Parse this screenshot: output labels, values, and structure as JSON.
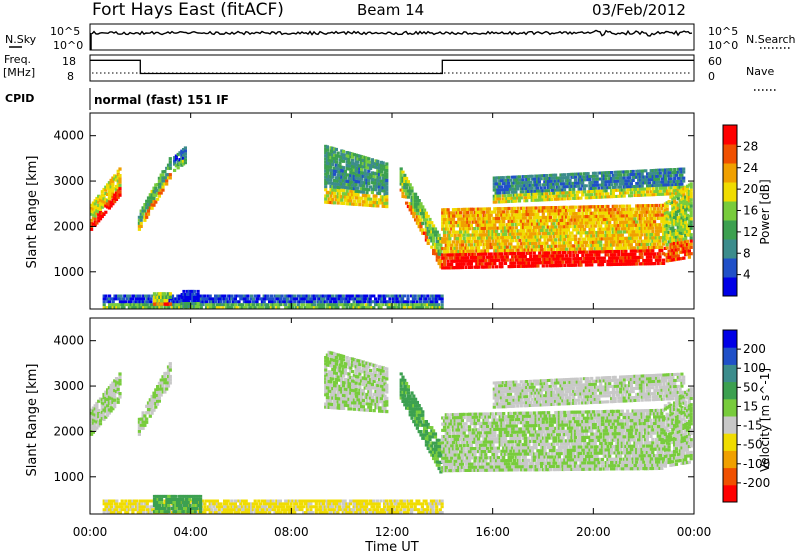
{
  "header": {
    "station": "Fort Hays East (fitACF)",
    "beam": "Beam 14",
    "date": "03/Feb/2012"
  },
  "strips": {
    "nsky_label": "N.Sky",
    "nsearch_label": "N.Search",
    "freq_label_top": "Freq.",
    "freq_label_units": "[MHz]",
    "nave_label": "Nave",
    "cpid_label": "CPID",
    "cpid_text": "normal (fast) 151 IF",
    "noise_ticks_left": [
      "10^5",
      "10^0"
    ],
    "noise_ticks_right": [
      "10^5",
      "10^0"
    ],
    "freq_ticks": [
      "18",
      "8"
    ],
    "nave_ticks": [
      "60",
      "0"
    ],
    "freq_steps": [
      {
        "start": 0.0,
        "end": 2.0,
        "freq": 16.5
      },
      {
        "start": 2.0,
        "end": 14.0,
        "freq": 10.5
      },
      {
        "start": 14.0,
        "end": 24.0,
        "freq": 16.5
      }
    ]
  },
  "chart_data": [
    {
      "type": "heatmap",
      "parameter": "Power",
      "ylabel": "Slant Range [km]",
      "yticks": [
        "1000",
        "2000",
        "3000",
        "4000"
      ],
      "ylim": [
        180,
        4500
      ],
      "xlim": [
        0,
        24
      ],
      "colorbar_label": "Power [dB]",
      "colorbar_ticks": [
        "4",
        "8",
        "12",
        "16",
        "20",
        "24",
        "28"
      ],
      "colorbar_range": [
        0,
        30
      ],
      "colorscale": [
        "#0000e6",
        "#2050c8",
        "#3c8c8c",
        "#3ca050",
        "#78cc3c",
        "#f0dc00",
        "#f0a000",
        "#f05000",
        "#ff0000"
      ],
      "features": [
        {
          "t0": 0.0,
          "t1": 1.2,
          "r0": 1900,
          "r1": 2500,
          "r0_end": 2700,
          "r1_end": 3350,
          "power": 20
        },
        {
          "t0": 1.9,
          "t1": 3.2,
          "r0": 1900,
          "r1": 2300,
          "r0_end": 3100,
          "r1_end": 3600,
          "power": 14
        },
        {
          "t0": 3.3,
          "t1": 3.8,
          "r0": 3200,
          "r1": 3550,
          "r0_end": 3400,
          "r1_end": 3800,
          "power": 8
        },
        {
          "t0": 9.3,
          "t1": 11.8,
          "r0": 2500,
          "r1": 3800,
          "r0_end": 2400,
          "r1_end": 3400,
          "power": 12
        },
        {
          "t0": 12.3,
          "t1": 13.95,
          "r0": 2700,
          "r1": 3300,
          "r0_end": 1000,
          "r1_end": 1700,
          "power": 16
        },
        {
          "t0": 13.95,
          "t1": 22.8,
          "r0": 1050,
          "r1": 2400,
          "r0_end": 1150,
          "r1_end": 2500,
          "power": 22
        },
        {
          "t0": 16.0,
          "t1": 23.6,
          "r0": 2500,
          "r1": 3100,
          "r0_end": 2700,
          "r1_end": 3300,
          "power": 10
        },
        {
          "t0": 22.8,
          "t1": 23.9,
          "r0": 1200,
          "r1": 2600,
          "r0_end": 1300,
          "r1_end": 3000,
          "power": 18
        },
        {
          "t0": 0.5,
          "t1": 14.0,
          "r0": 180,
          "r1": 500,
          "r0_end": 180,
          "r1_end": 500,
          "power": 6
        },
        {
          "t0": 3.6,
          "t1": 4.3,
          "r0": 200,
          "r1": 600,
          "r0_end": 200,
          "r1_end": 600,
          "power": 4
        },
        {
          "t0": 2.5,
          "t1": 3.2,
          "r0": 250,
          "r1": 550,
          "r0_end": 250,
          "r1_end": 550,
          "power": 18
        }
      ]
    },
    {
      "type": "heatmap",
      "parameter": "Velocity",
      "xlabel": "Time UT",
      "ylabel": "Slant Range [km]",
      "yticks": [
        "1000",
        "2000",
        "3000",
        "4000"
      ],
      "ylim": [
        180,
        4500
      ],
      "xlim": [
        0,
        24
      ],
      "xticks": [
        "00:00",
        "04:00",
        "08:00",
        "12:00",
        "16:00",
        "20:00",
        "00:00"
      ],
      "colorbar_label": "Velocity [m s^-1]",
      "colorbar_ticks": [
        "200",
        "100",
        "50",
        "15",
        "-15",
        "-50",
        "-100",
        "-200"
      ],
      "colorbar_range": [
        -250,
        250
      ],
      "colorscale": [
        "#ff0000",
        "#f05000",
        "#f0a000",
        "#f0dc00",
        "#c8c8c8",
        "#78cc3c",
        "#3ca050",
        "#3c8c8c",
        "#2050c8",
        "#0000e6"
      ],
      "features": [
        {
          "t0": 0.0,
          "t1": 1.2,
          "r0": 1900,
          "r1": 2500,
          "r0_end": 2700,
          "r1_end": 3350,
          "velocity": 0
        },
        {
          "t0": 1.9,
          "t1": 3.2,
          "r0": 1900,
          "r1": 2300,
          "r0_end": 3100,
          "r1_end": 3600,
          "velocity": 0
        },
        {
          "t0": 9.3,
          "t1": 11.8,
          "r0": 2500,
          "r1": 3800,
          "r0_end": 2400,
          "r1_end": 3400,
          "velocity": 0
        },
        {
          "t0": 12.3,
          "t1": 13.95,
          "r0": 2700,
          "r1": 3300,
          "r0_end": 1000,
          "r1_end": 1700,
          "velocity": 60
        },
        {
          "t0": 13.95,
          "t1": 22.8,
          "r0": 1100,
          "r1": 2400,
          "r0_end": 1150,
          "r1_end": 2500,
          "velocity": 0
        },
        {
          "t0": 16.0,
          "t1": 23.6,
          "r0": 2500,
          "r1": 3100,
          "r0_end": 2700,
          "r1_end": 3300,
          "velocity": -10
        },
        {
          "t0": 22.8,
          "t1": 23.9,
          "r0": 1200,
          "r1": 2600,
          "r0_end": 1300,
          "r1_end": 3000,
          "velocity": 0
        },
        {
          "t0": 0.5,
          "t1": 14.0,
          "r0": 180,
          "r1": 500,
          "r0_end": 180,
          "r1_end": 500,
          "velocity": -60
        },
        {
          "t0": 2.5,
          "t1": 4.4,
          "r0": 200,
          "r1": 600,
          "r0_end": 200,
          "r1_end": 600,
          "velocity": 60
        }
      ]
    }
  ]
}
